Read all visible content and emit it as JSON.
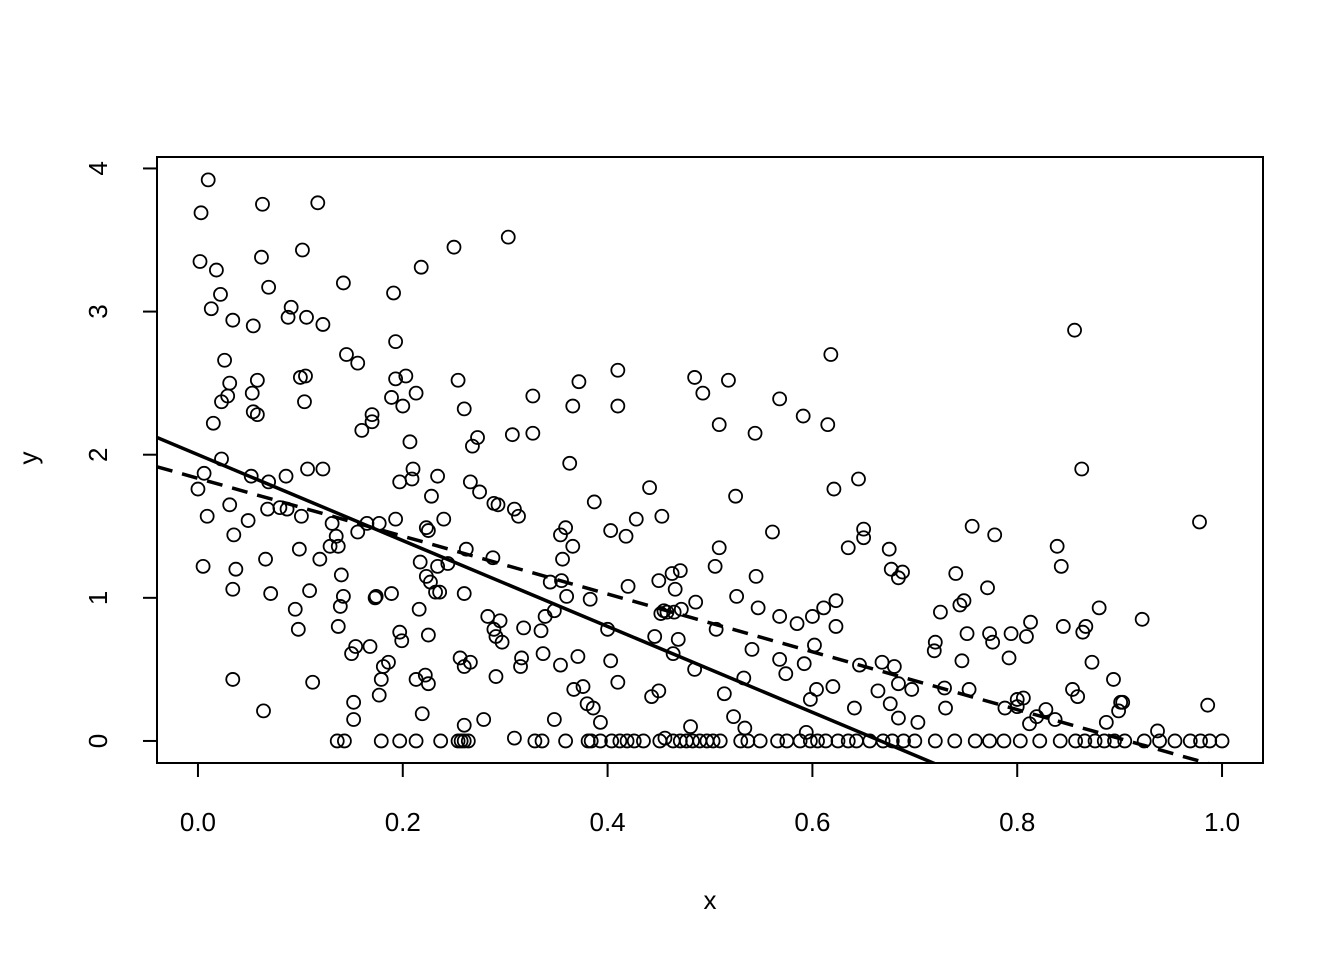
{
  "chart_data": {
    "type": "scatter",
    "xlabel": "x",
    "ylabel": "y",
    "xlim": [
      -0.04,
      1.04
    ],
    "ylim": [
      -0.154,
      4.08
    ],
    "xticks": [
      {
        "value": 0,
        "label": "0.0"
      },
      0.2,
      0.4,
      0.6,
      0.8,
      {
        "value": 1,
        "label": "1.0"
      }
    ],
    "yticks": [
      0,
      1,
      2,
      3,
      4
    ],
    "color": "#000000",
    "lines": [
      {
        "intercept": 2.0,
        "slope": -3.0,
        "dash": "solid"
      },
      {
        "intercept": 1.835,
        "slope": -2.02,
        "dash": "dashed"
      }
    ],
    "x": [
      0.01,
      0.003,
      0.002,
      0.018,
      0.022,
      0.013,
      0.034,
      0.026,
      0.031,
      0.023,
      0.029,
      0.015,
      0.023,
      0.006,
      0.0,
      0.009,
      0.031,
      0.035,
      0.005,
      0.037,
      0.034,
      0.034,
      0.063,
      0.062,
      0.069,
      0.054,
      0.058,
      0.053,
      0.054,
      0.058,
      0.052,
      0.069,
      0.049,
      0.068,
      0.08,
      0.087,
      0.086,
      0.066,
      0.071,
      0.064,
      0.117,
      0.102,
      0.091,
      0.106,
      0.088,
      0.122,
      0.142,
      0.145,
      0.156,
      0.105,
      0.1,
      0.104,
      0.107,
      0.122,
      0.101,
      0.099,
      0.119,
      0.098,
      0.095,
      0.109,
      0.112,
      0.131,
      0.129,
      0.135,
      0.137,
      0.14,
      0.142,
      0.139,
      0.137,
      0.15,
      0.154,
      0.152,
      0.152,
      0.136,
      0.143,
      0.156,
      0.16,
      0.17,
      0.17,
      0.165,
      0.177,
      0.168,
      0.174,
      0.173,
      0.191,
      0.193,
      0.193,
      0.203,
      0.189,
      0.2,
      0.213,
      0.207,
      0.21,
      0.209,
      0.197,
      0.193,
      0.197,
      0.199,
      0.189,
      0.186,
      0.181,
      0.179,
      0.177,
      0.179,
      0.197,
      0.213,
      0.218,
      0.213,
      0.219,
      0.223,
      0.225,
      0.228,
      0.217,
      0.216,
      0.225,
      0.222,
      0.225,
      0.223,
      0.227,
      0.234,
      0.234,
      0.24,
      0.232,
      0.236,
      0.237,
      0.25,
      0.254,
      0.26,
      0.268,
      0.273,
      0.266,
      0.244,
      0.262,
      0.26,
      0.275,
      0.289,
      0.293,
      0.256,
      0.26,
      0.266,
      0.26,
      0.254,
      0.257,
      0.26,
      0.264,
      0.279,
      0.283,
      0.288,
      0.289,
      0.291,
      0.295,
      0.297,
      0.291,
      0.303,
      0.307,
      0.327,
      0.327,
      0.309,
      0.313,
      0.316,
      0.315,
      0.318,
      0.309,
      0.329,
      0.336,
      0.335,
      0.339,
      0.337,
      0.344,
      0.348,
      0.348,
      0.354,
      0.354,
      0.359,
      0.356,
      0.355,
      0.36,
      0.363,
      0.366,
      0.372,
      0.366,
      0.359,
      0.367,
      0.371,
      0.376,
      0.38,
      0.383,
      0.386,
      0.387,
      0.393,
      0.381,
      0.384,
      0.393,
      0.403,
      0.4,
      0.403,
      0.41,
      0.41,
      0.41,
      0.418,
      0.42,
      0.404,
      0.412,
      0.419,
      0.428,
      0.426,
      0.435,
      0.441,
      0.443,
      0.446,
      0.45,
      0.45,
      0.453,
      0.452,
      0.455,
      0.458,
      0.456,
      0.451,
      0.463,
      0.466,
      0.471,
      0.469,
      0.464,
      0.465,
      0.472,
      0.464,
      0.471,
      0.477,
      0.485,
      0.493,
      0.486,
      0.485,
      0.481,
      0.483,
      0.49,
      0.497,
      0.503,
      0.51,
      0.505,
      0.506,
      0.509,
      0.509,
      0.518,
      0.525,
      0.514,
      0.523,
      0.526,
      0.533,
      0.534,
      0.53,
      0.537,
      0.541,
      0.544,
      0.545,
      0.547,
      0.549,
      0.561,
      0.568,
      0.568,
      0.568,
      0.574,
      0.566,
      0.575,
      0.585,
      0.591,
      0.592,
      0.594,
      0.598,
      0.6,
      0.602,
      0.604,
      0.588,
      0.598,
      0.605,
      0.611,
      0.615,
      0.618,
      0.621,
      0.623,
      0.623,
      0.62,
      0.625,
      0.613,
      0.635,
      0.641,
      0.645,
      0.65,
      0.65,
      0.646,
      0.635,
      0.643,
      0.656,
      0.664,
      0.668,
      0.675,
      0.676,
      0.677,
      0.68,
      0.684,
      0.688,
      0.684,
      0.684,
      0.697,
      0.703,
      0.669,
      0.678,
      0.689,
      0.7,
      0.719,
      0.72,
      0.725,
      0.729,
      0.73,
      0.74,
      0.744,
      0.748,
      0.746,
      0.751,
      0.753,
      0.756,
      0.72,
      0.739,
      0.759,
      0.771,
      0.773,
      0.776,
      0.778,
      0.788,
      0.792,
      0.794,
      0.8,
      0.806,
      0.8,
      0.773,
      0.787,
      0.803,
      0.809,
      0.813,
      0.812,
      0.819,
      0.828,
      0.837,
      0.839,
      0.843,
      0.845,
      0.854,
      0.856,
      0.859,
      0.863,
      0.864,
      0.867,
      0.873,
      0.88,
      0.887,
      0.894,
      0.899,
      0.901,
      0.903,
      0.922,
      0.978,
      0.937,
      0.986,
      0.822,
      0.842,
      0.857,
      0.866,
      0.876,
      0.885,
      0.895,
      0.905,
      0.924,
      0.939,
      0.954,
      0.969,
      0.979,
      0.988,
      1.0
    ],
    "values": [
      3.92,
      3.69,
      3.35,
      3.29,
      3.12,
      3.02,
      2.94,
      2.66,
      2.5,
      2.37,
      2.41,
      2.22,
      1.97,
      1.87,
      1.76,
      1.57,
      1.65,
      1.44,
      1.22,
      1.2,
      1.06,
      0.43,
      3.75,
      3.38,
      3.17,
      2.9,
      2.52,
      2.43,
      2.3,
      2.28,
      1.85,
      1.81,
      1.54,
      1.62,
      1.63,
      1.62,
      1.85,
      1.27,
      1.03,
      0.21,
      3.76,
      3.43,
      3.03,
      2.96,
      2.96,
      2.91,
      3.2,
      2.7,
      2.64,
      2.55,
      2.54,
      2.37,
      1.9,
      1.9,
      1.57,
      1.34,
      1.27,
      0.78,
      0.92,
      1.05,
      0.41,
      1.52,
      1.36,
      1.43,
      1.36,
      1.16,
      1.01,
      0.94,
      0.8,
      0.61,
      0.66,
      0.27,
      0.15,
      0,
      0,
      1.46,
      2.17,
      2.28,
      2.23,
      1.52,
      1.52,
      0.66,
      1.01,
      1.0,
      3.13,
      2.79,
      2.53,
      2.55,
      2.4,
      2.34,
      2.43,
      2.09,
      1.9,
      1.83,
      1.81,
      1.55,
      0.76,
      0.7,
      1.03,
      0.55,
      0.52,
      0.43,
      0.32,
      0,
      0,
      0,
      3.31,
      0.43,
      0.19,
      1.49,
      1.47,
      1.71,
      1.25,
      0.92,
      0.74,
      0.46,
      0.4,
      1.15,
      1.11,
      1.22,
      1.85,
      1.55,
      1.04,
      1.04,
      0,
      3.45,
      2.52,
      2.32,
      2.06,
      2.12,
      1.81,
      1.24,
      1.34,
      1.03,
      1.74,
      1.66,
      1.65,
      0.58,
      0.52,
      0.55,
      0.11,
      0,
      0,
      0,
      0,
      0.15,
      0.87,
      1.28,
      0.78,
      0.73,
      0.84,
      0.69,
      0.45,
      3.52,
      2.14,
      2.41,
      2.15,
      1.62,
      1.57,
      0.58,
      0.52,
      0.79,
      0.02,
      0,
      0,
      0.77,
      0.87,
      0.61,
      1.11,
      0.91,
      0.15,
      0.53,
      1.44,
      1.49,
      1.27,
      1.12,
      1.01,
      1.94,
      2.34,
      2.51,
      1.36,
      0,
      0.36,
      0.59,
      0.38,
      0.26,
      0.99,
      0.23,
      1.67,
      0.13,
      0,
      0,
      0,
      1.47,
      0.78,
      0.56,
      2.59,
      2.34,
      0.41,
      1.43,
      1.08,
      0,
      0,
      0,
      1.55,
      0,
      0,
      1.77,
      0.31,
      0.73,
      0.35,
      1.12,
      1.57,
      0.89,
      0.91,
      0.9,
      0.02,
      0,
      1.17,
      1.06,
      1.19,
      0.71,
      0.61,
      0.9,
      0.92,
      0,
      0,
      0,
      2.54,
      2.43,
      0.97,
      0.5,
      0.1,
      0,
      0,
      0,
      0,
      0,
      1.22,
      0.78,
      1.35,
      2.21,
      2.52,
      1.71,
      0.33,
      0.17,
      1.01,
      0.44,
      0.09,
      0,
      0,
      0.64,
      2.15,
      1.15,
      0.93,
      0,
      1.46,
      2.39,
      0.57,
      0.87,
      0.47,
      0,
      0,
      0.82,
      2.27,
      0.54,
      0.06,
      0.29,
      0.87,
      0.67,
      0.36,
      0,
      0,
      0,
      0.93,
      2.21,
      2.7,
      1.76,
      0.98,
      0.8,
      0.38,
      0,
      0,
      1.35,
      0.23,
      1.83,
      1.48,
      1.42,
      0.53,
      0,
      0,
      0,
      0.35,
      0.55,
      1.34,
      0.26,
      1.2,
      0.52,
      1.14,
      1.18,
      0.4,
      0.16,
      0.36,
      0.13,
      0,
      0,
      0,
      0,
      0.63,
      0.69,
      0.9,
      0.37,
      0.23,
      1.17,
      0.95,
      0.98,
      0.56,
      0.75,
      0.36,
      1.5,
      0,
      0,
      0,
      1.07,
      0.75,
      0.69,
      1.44,
      0.23,
      0.58,
      0.75,
      0.29,
      0.3,
      0.24,
      0,
      0,
      0,
      0.73,
      0.83,
      0.12,
      0.17,
      0.22,
      0.15,
      1.36,
      1.22,
      0.8,
      0.36,
      2.87,
      0.31,
      1.9,
      0.76,
      0.8,
      0.55,
      0.93,
      0.13,
      0.43,
      0.21,
      0.27,
      0.27,
      0.85,
      1.53,
      0.07,
      0.25,
      0,
      0,
      0,
      0,
      0,
      0,
      0,
      0,
      0,
      0,
      0,
      0,
      0,
      0,
      0
    ]
  }
}
